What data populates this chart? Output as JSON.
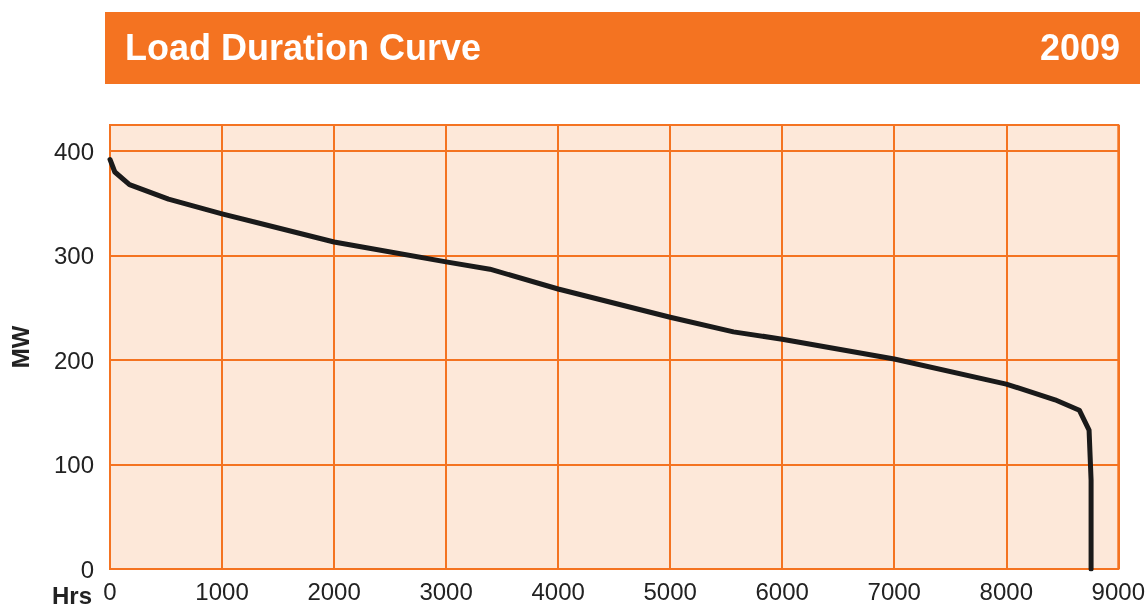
{
  "chart_data": {
    "type": "line",
    "title": "Load Duration Curve",
    "subtitle": "2009",
    "xlabel": "Hrs",
    "ylabel": "MW",
    "xlim": [
      0,
      9000
    ],
    "xticks": [
      0,
      1000,
      2000,
      3000,
      4000,
      5000,
      6000,
      7000,
      8000,
      9000
    ],
    "ylim": [
      0,
      425
    ],
    "yticks": [
      0,
      100,
      200,
      300,
      400
    ],
    "grid": true,
    "marker": "none",
    "line_style": "solid",
    "series": [
      {
        "color": "#1a1a1a",
        "x": [
          0,
          43,
          174,
          522,
          1000,
          2000,
          3000,
          3391,
          4000,
          5000,
          5565,
          6000,
          7000,
          8000,
          8435,
          8652,
          8739,
          8757,
          8757
        ],
        "values": [
          392,
          380,
          368,
          354,
          340,
          313,
          294,
          287,
          268,
          241,
          227,
          220,
          201,
          177,
          162,
          152,
          133,
          85,
          0
        ]
      }
    ]
  }
}
